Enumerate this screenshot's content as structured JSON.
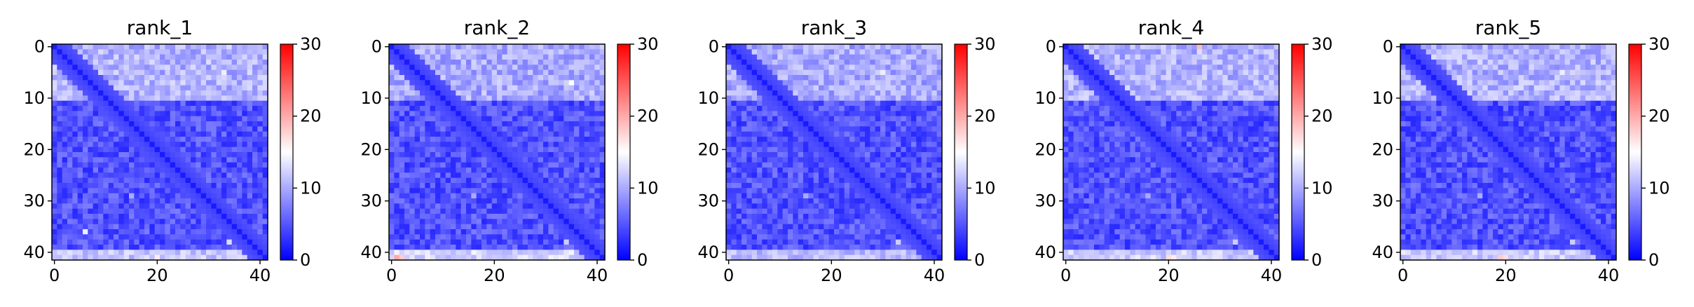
{
  "colormap": {
    "name": "bwr",
    "low": "#0000ff",
    "mid": "#ffffff",
    "high": "#ff0000"
  },
  "chart_data": [
    {
      "type": "heatmap",
      "title": "rank_1",
      "size": 42,
      "x_ticks": [
        0,
        20,
        40
      ],
      "y_ticks": [
        0,
        10,
        20,
        30,
        40
      ],
      "colorbar_ticks": [
        0,
        10,
        20,
        30
      ],
      "vmin": 0,
      "vmax": 30,
      "pattern": {
        "diag": 1.5,
        "near": 3.5,
        "near_width": 3,
        "bg": 4.8,
        "block_rows": [
          0,
          10
        ],
        "block_val": 10.5,
        "bottom_rows": [
          40,
          41
        ],
        "bottom_val": 11.5,
        "noise": 2.5,
        "seed": 11,
        "hotspots": [
          {
            "i": 36,
            "j": 6,
            "v": 14
          },
          {
            "i": 38,
            "j": 34,
            "v": 13
          },
          {
            "i": 29,
            "j": 15,
            "v": 10
          },
          {
            "i": 41,
            "j": 20,
            "v": 16
          },
          {
            "i": 5,
            "j": 33,
            "v": 14
          }
        ]
      }
    },
    {
      "type": "heatmap",
      "title": "rank_2",
      "size": 42,
      "x_ticks": [
        0,
        20,
        40
      ],
      "y_ticks": [
        0,
        10,
        20,
        30,
        40
      ],
      "colorbar_ticks": [
        0,
        10,
        20,
        30
      ],
      "vmin": 0,
      "vmax": 30,
      "pattern": {
        "diag": 1.5,
        "near": 3.5,
        "near_width": 3,
        "bg": 4.8,
        "block_rows": [
          0,
          10
        ],
        "block_val": 10.0,
        "bottom_rows": [
          40,
          41
        ],
        "bottom_val": 12.5,
        "noise": 2.5,
        "seed": 23,
        "hotspots": [
          {
            "i": 41,
            "j": 1,
            "v": 20
          },
          {
            "i": 41,
            "j": 2,
            "v": 18
          },
          {
            "i": 29,
            "j": 16,
            "v": 10
          },
          {
            "i": 38,
            "j": 34,
            "v": 12
          },
          {
            "i": 7,
            "j": 35,
            "v": 15
          }
        ]
      }
    },
    {
      "type": "heatmap",
      "title": "rank_3",
      "size": 42,
      "x_ticks": [
        0,
        20,
        40
      ],
      "y_ticks": [
        0,
        10,
        20,
        30,
        40
      ],
      "colorbar_ticks": [
        0,
        10,
        20,
        30
      ],
      "vmin": 0,
      "vmax": 30,
      "pattern": {
        "diag": 1.5,
        "near": 3.5,
        "near_width": 3,
        "bg": 4.8,
        "block_rows": [
          0,
          10
        ],
        "block_val": 10.0,
        "bottom_rows": [
          40,
          41
        ],
        "bottom_val": 11.0,
        "noise": 2.5,
        "seed": 37,
        "hotspots": [
          {
            "i": 29,
            "j": 15,
            "v": 10
          },
          {
            "i": 38,
            "j": 33,
            "v": 12
          },
          {
            "i": 5,
            "j": 30,
            "v": 14
          }
        ]
      }
    },
    {
      "type": "heatmap",
      "title": "rank_4",
      "size": 42,
      "x_ticks": [
        0,
        20,
        40
      ],
      "y_ticks": [
        0,
        10,
        20,
        30,
        40
      ],
      "colorbar_ticks": [
        0,
        10,
        20,
        30
      ],
      "vmin": 0,
      "vmax": 30,
      "pattern": {
        "diag": 1.5,
        "near": 3.5,
        "near_width": 3,
        "bg": 4.8,
        "block_rows": [
          0,
          10
        ],
        "block_val": 10.5,
        "bottom_rows": [
          40,
          41
        ],
        "bottom_val": 12.0,
        "noise": 2.5,
        "seed": 51,
        "hotspots": [
          {
            "i": 0,
            "j": 26,
            "v": 19
          },
          {
            "i": 41,
            "j": 20,
            "v": 17
          },
          {
            "i": 41,
            "j": 21,
            "v": 16
          },
          {
            "i": 29,
            "j": 16,
            "v": 10
          },
          {
            "i": 38,
            "j": 33,
            "v": 12
          }
        ]
      }
    },
    {
      "type": "heatmap",
      "title": "rank_5",
      "size": 42,
      "x_ticks": [
        0,
        20,
        40
      ],
      "y_ticks": [
        0,
        10,
        20,
        30,
        40
      ],
      "colorbar_ticks": [
        0,
        10,
        20,
        30
      ],
      "vmin": 0,
      "vmax": 30,
      "pattern": {
        "diag": 1.5,
        "near": 3.5,
        "near_width": 3,
        "bg": 4.8,
        "block_rows": [
          0,
          10
        ],
        "block_val": 10.5,
        "bottom_rows": [
          40,
          41
        ],
        "bottom_val": 12.0,
        "noise": 2.5,
        "seed": 67,
        "hotspots": [
          {
            "i": 41,
            "j": 19,
            "v": 18
          },
          {
            "i": 41,
            "j": 20,
            "v": 17
          },
          {
            "i": 29,
            "j": 15,
            "v": 10
          },
          {
            "i": 38,
            "j": 33,
            "v": 12
          },
          {
            "i": 5,
            "j": 31,
            "v": 14
          }
        ]
      }
    }
  ]
}
